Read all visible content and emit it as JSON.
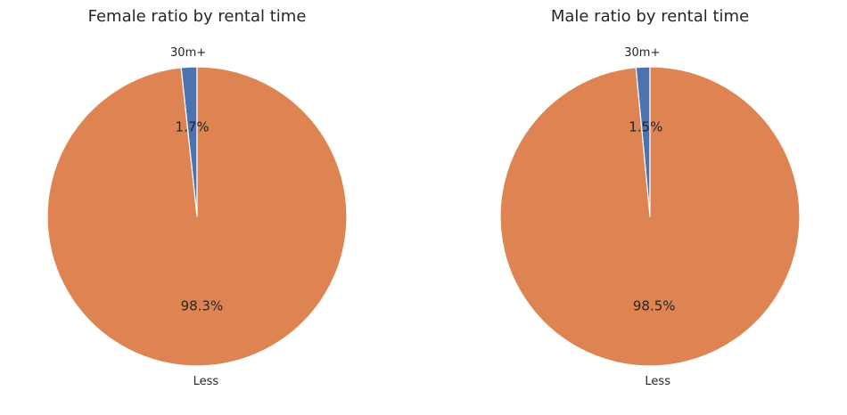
{
  "chart_data": [
    {
      "type": "pie",
      "title": "Female ratio by rental time",
      "categories": [
        "30m+",
        "Less"
      ],
      "values": [
        1.7,
        98.3
      ],
      "value_labels": [
        "1.7%",
        "98.3%"
      ],
      "colors": [
        "#4c72b0",
        "#dd8452"
      ],
      "start_angle_deg": 90,
      "direction": "counterclockwise"
    },
    {
      "type": "pie",
      "title": "Male ratio by rental time",
      "categories": [
        "30m+",
        "Less"
      ],
      "values": [
        1.5,
        98.5
      ],
      "value_labels": [
        "1.5%",
        "98.5%"
      ],
      "colors": [
        "#4c72b0",
        "#dd8452"
      ],
      "start_angle_deg": 90,
      "direction": "counterclockwise"
    }
  ]
}
